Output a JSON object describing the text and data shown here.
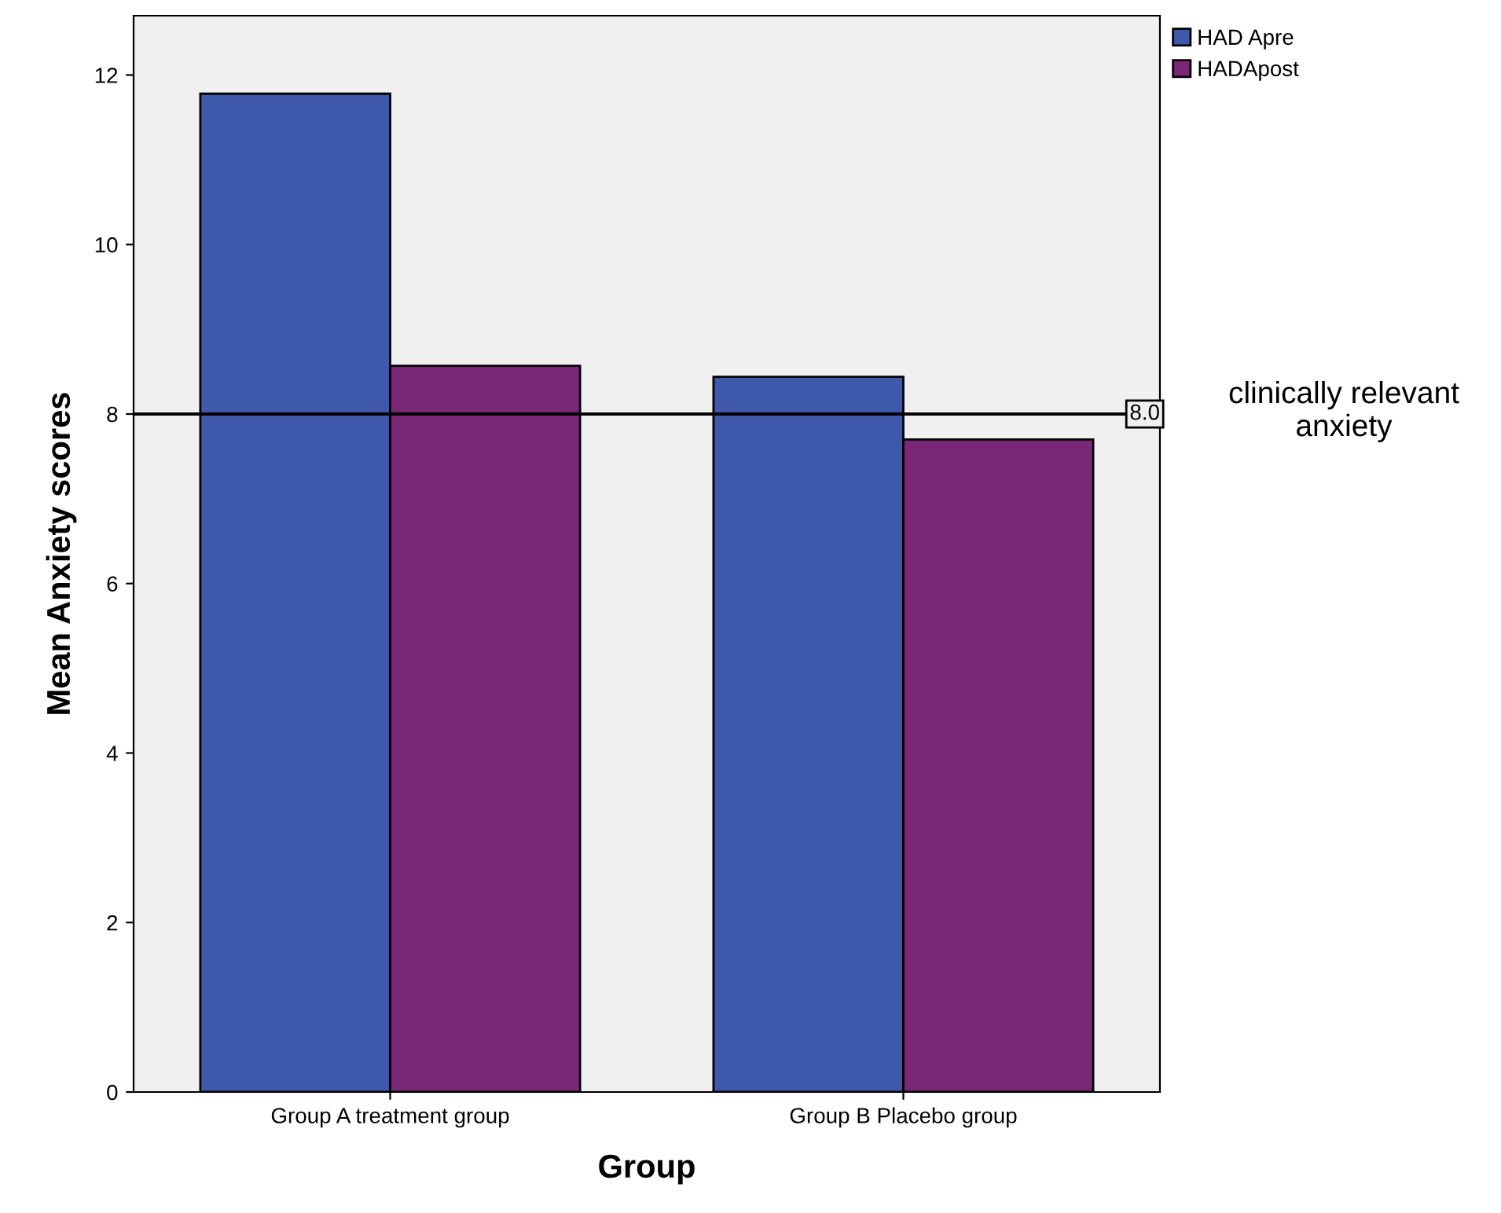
{
  "chart_data": {
    "type": "bar",
    "xlabel": "Group",
    "ylabel": "Mean Anxiety scores",
    "categories": [
      "Group A treatment group",
      "Group B Placebo group"
    ],
    "series": [
      {
        "name": "HAD Apre",
        "color": "#3e58ac",
        "values": [
          11.78,
          8.44
        ]
      },
      {
        "name": "HADApost",
        "color": "#7b2778",
        "values": [
          8.57,
          7.7
        ]
      }
    ],
    "ylim": [
      0,
      12.7
    ],
    "yticks": [
      0,
      2,
      4,
      6,
      8,
      10,
      12
    ],
    "ref_lines": [
      {
        "axis": "y",
        "value": 8,
        "label": "8.0",
        "color": "#000000"
      }
    ],
    "annotations": [
      "clinically relevant\nanxiety"
    ],
    "legend": "top right",
    "grid": false
  }
}
